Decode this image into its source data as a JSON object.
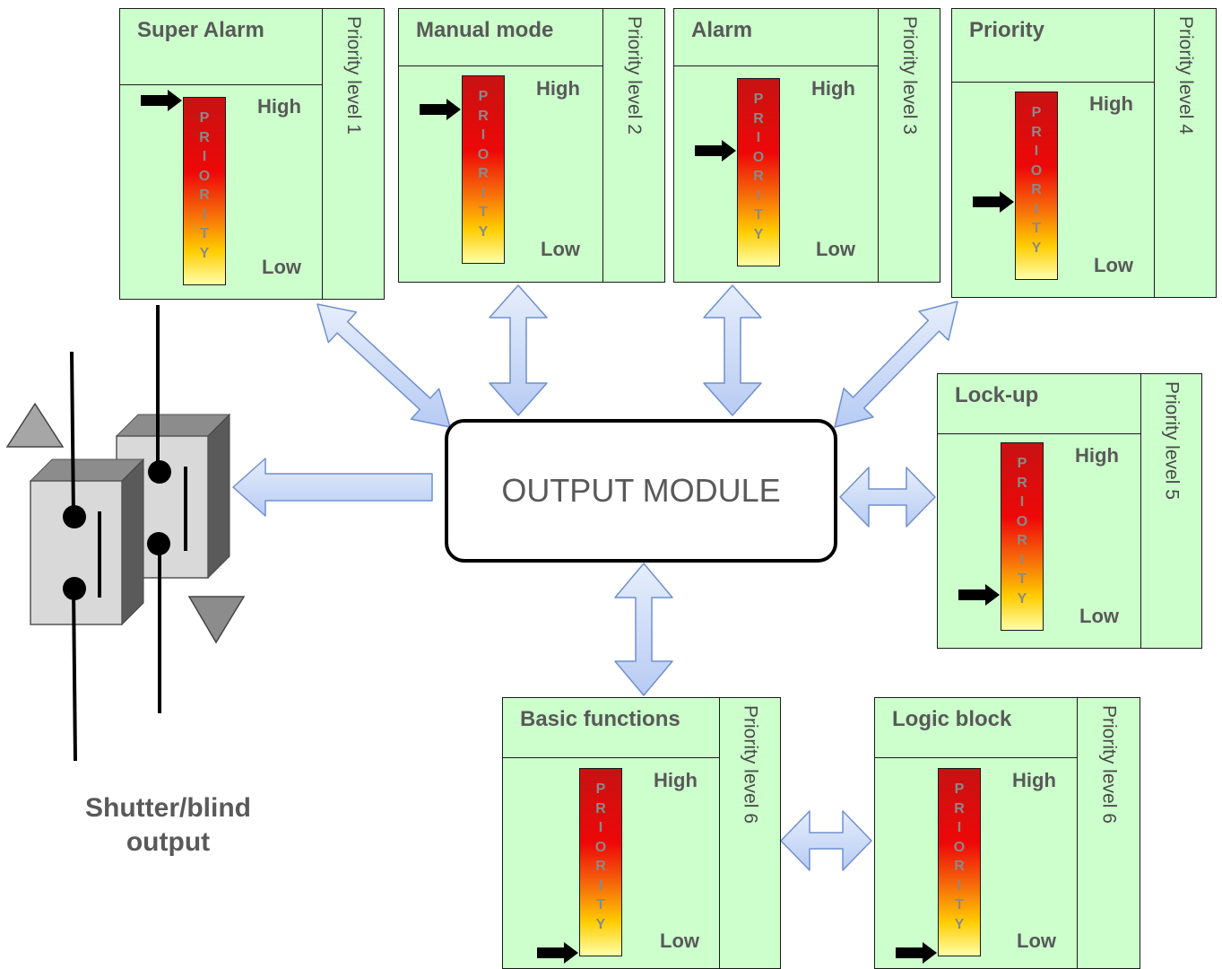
{
  "bar_letters": [
    "P",
    "R",
    "I",
    "O",
    "R",
    "I",
    "T",
    "Y"
  ],
  "scale": {
    "high": "High",
    "low": "Low"
  },
  "cards": [
    {
      "title": "Super Alarm",
      "priority_label": "Priority level 1",
      "pointer_level": 1.0
    },
    {
      "title": "Manual mode",
      "priority_label": "Priority level 2",
      "pointer_level": 0.83
    },
    {
      "title": "Alarm",
      "priority_label": "Priority level 3",
      "pointer_level": 0.62
    },
    {
      "title": "Priority",
      "priority_label": "Priority level 4",
      "pointer_level": 0.41
    },
    {
      "title": "Lock-up",
      "priority_label": "Priority level 5",
      "pointer_level": 0.18
    },
    {
      "title": "Basic functions",
      "priority_label": "Priority level 6",
      "pointer_level": 0.0
    },
    {
      "title": "Logic block",
      "priority_label": "Priority level 6",
      "pointer_level": 0.0
    }
  ],
  "module": {
    "label": "OUTPUT MODULE"
  },
  "output": {
    "label_line1": "Shutter/blind",
    "label_line2": "output"
  },
  "colors": {
    "card_fill": "#ccffcc",
    "arrow_fill": "#c9d9f7",
    "arrow_stroke": "#6f8fcf",
    "bar_top": "#e00000",
    "bar_bottom": "#ffff99"
  }
}
